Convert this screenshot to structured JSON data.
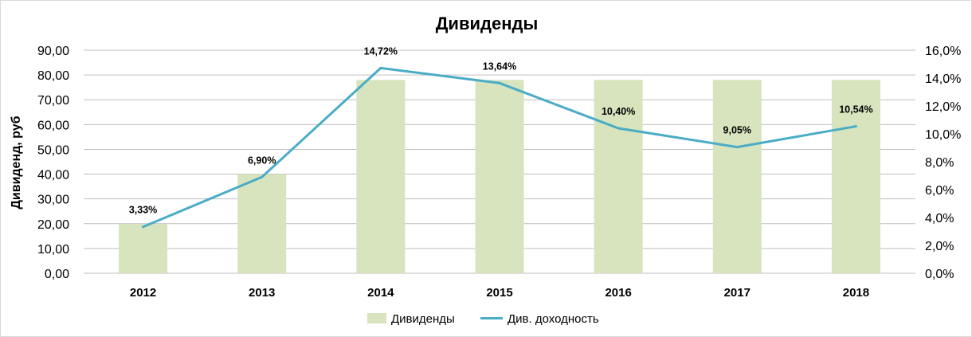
{
  "chart_data": {
    "type": "bar",
    "title": "Дивиденды",
    "categories": [
      "2012",
      "2013",
      "2014",
      "2015",
      "2016",
      "2017",
      "2018"
    ],
    "series": [
      {
        "name": "Дивиденды",
        "type": "bar",
        "axis": "left",
        "values": [
          19.9,
          40.0,
          78.0,
          78.0,
          78.0,
          78.0,
          78.0
        ]
      },
      {
        "name": "Див. доходность",
        "type": "line",
        "axis": "right",
        "values": [
          3.33,
          6.9,
          14.72,
          13.64,
          10.4,
          9.05,
          10.54
        ],
        "labels": [
          "3,33%",
          "6,90%",
          "14,72%",
          "13,64%",
          "10,40%",
          "9,05%",
          "10,54%"
        ]
      }
    ],
    "ylabel": "Дивиденд, руб",
    "ylim": [
      0,
      90
    ],
    "yticks": [
      "0,00",
      "10,00",
      "20,00",
      "30,00",
      "40,00",
      "50,00",
      "60,00",
      "70,00",
      "80,00",
      "90,00"
    ],
    "y2lim": [
      0,
      16
    ],
    "y2ticks": [
      "0,0%",
      "2,0%",
      "4,0%",
      "6,0%",
      "8,0%",
      "10,0%",
      "12,0%",
      "14,0%",
      "16,0%"
    ],
    "grid": true,
    "legend": "bottom",
    "colors": {
      "bar": "#d7e4bd",
      "line": "#4bacc6"
    }
  }
}
